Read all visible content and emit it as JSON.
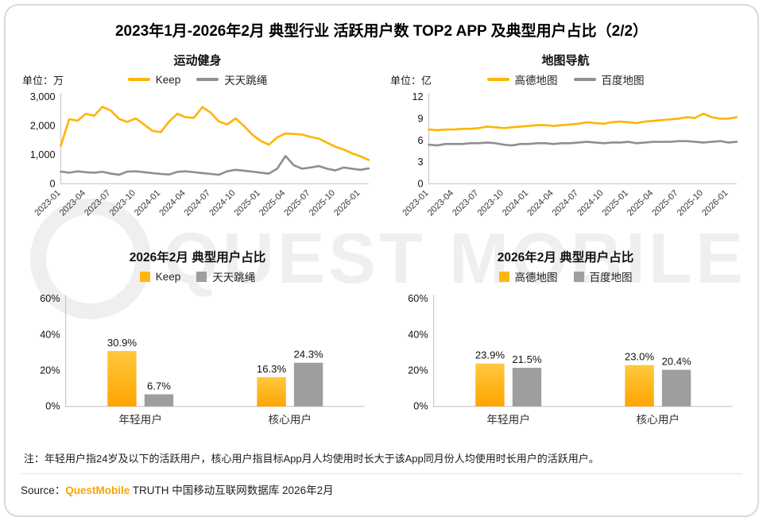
{
  "page": {
    "title": "2023年1月-2026年2月 典型行业 活跃用户数 TOP2 APP 及典型用户占比（2/2）",
    "note": "注：年轻用户指24岁及以下的活跃用户，核心用户指目标App月人均使用时长大于该App同月份人均使用时长用户的活跃用户。",
    "source_prefix": "Source：",
    "source_brand": "QuestMobile",
    "source_suffix": " TRUTH 中国移动互联网数据库 2026年2月",
    "watermark": "QUEST MOBILE"
  },
  "colors": {
    "accent_yellow": "#FFB400",
    "gray": "#8F8F8F",
    "brand_orange": "#F7A600"
  },
  "chart_data": [
    {
      "type": "line",
      "title": "运动健身",
      "unit_label": "单位：万",
      "x": [
        "2023-01",
        "2023-02",
        "2023-03",
        "2023-04",
        "2023-05",
        "2023-06",
        "2023-07",
        "2023-08",
        "2023-09",
        "2023-10",
        "2023-11",
        "2023-12",
        "2024-01",
        "2024-02",
        "2024-03",
        "2024-04",
        "2024-05",
        "2024-06",
        "2024-07",
        "2024-08",
        "2024-09",
        "2024-10",
        "2024-11",
        "2024-12",
        "2025-01",
        "2025-02",
        "2025-03",
        "2025-04",
        "2025-05",
        "2025-06",
        "2025-07",
        "2025-08",
        "2025-09",
        "2025-10",
        "2025-11",
        "2025-12",
        "2026-01",
        "2026-02"
      ],
      "tick_labels": [
        "2023-01",
        "2023-04",
        "2023-07",
        "2023-10",
        "2024-01",
        "2024-04",
        "2024-07",
        "2024-10",
        "2025-01",
        "2025-04",
        "2025-07",
        "2025-10",
        "2026-01"
      ],
      "tick_step": 3,
      "ylim": [
        0,
        3000
      ],
      "yticks": [
        0,
        1000,
        2000,
        3000
      ],
      "series": [
        {
          "name": "Keep",
          "color": "#FFB400",
          "values": [
            1320,
            2230,
            2180,
            2420,
            2350,
            2660,
            2530,
            2240,
            2140,
            2260,
            2050,
            1830,
            1780,
            2150,
            2420,
            2300,
            2280,
            2650,
            2460,
            2150,
            2050,
            2260,
            2000,
            1700,
            1480,
            1350,
            1600,
            1740,
            1720,
            1700,
            1620,
            1560,
            1420,
            1280,
            1180,
            1050,
            950,
            820
          ]
        },
        {
          "name": "天天跳绳",
          "color": "#8F8F8F",
          "values": [
            420,
            380,
            430,
            400,
            380,
            410,
            350,
            310,
            420,
            430,
            400,
            370,
            340,
            320,
            410,
            430,
            400,
            370,
            340,
            310,
            430,
            480,
            450,
            420,
            380,
            350,
            520,
            960,
            640,
            520,
            560,
            610,
            520,
            460,
            560,
            520,
            480,
            530
          ]
        }
      ]
    },
    {
      "type": "line",
      "title": "地图导航",
      "unit_label": "单位：亿",
      "x": [
        "2023-01",
        "2023-02",
        "2023-03",
        "2023-04",
        "2023-05",
        "2023-06",
        "2023-07",
        "2023-08",
        "2023-09",
        "2023-10",
        "2023-11",
        "2023-12",
        "2024-01",
        "2024-02",
        "2024-03",
        "2024-04",
        "2024-05",
        "2024-06",
        "2024-07",
        "2024-08",
        "2024-09",
        "2024-10",
        "2024-11",
        "2024-12",
        "2025-01",
        "2025-02",
        "2025-03",
        "2025-04",
        "2025-05",
        "2025-06",
        "2025-07",
        "2025-08",
        "2025-09",
        "2025-10",
        "2025-11",
        "2025-12",
        "2026-01",
        "2026-02"
      ],
      "tick_labels": [
        "2023-01",
        "2023-04",
        "2023-07",
        "2023-10",
        "2024-01",
        "2024-04",
        "2024-07",
        "2024-10",
        "2025-01",
        "2025-04",
        "2025-07",
        "2025-10",
        "2026-01"
      ],
      "tick_step": 3,
      "ylim": [
        0,
        12
      ],
      "yticks": [
        0,
        3,
        6,
        9,
        12
      ],
      "series": [
        {
          "name": "高德地图",
          "color": "#FFB400",
          "values": [
            7.5,
            7.4,
            7.5,
            7.5,
            7.6,
            7.6,
            7.7,
            7.9,
            7.8,
            7.7,
            7.8,
            7.9,
            8.0,
            8.1,
            8.1,
            8.0,
            8.1,
            8.2,
            8.3,
            8.5,
            8.4,
            8.3,
            8.5,
            8.6,
            8.5,
            8.4,
            8.6,
            8.7,
            8.8,
            8.9,
            9.0,
            9.2,
            9.1,
            9.7,
            9.2,
            9.0,
            9.0,
            9.2
          ]
        },
        {
          "name": "百度地图",
          "color": "#8F8F8F",
          "values": [
            5.4,
            5.3,
            5.5,
            5.5,
            5.5,
            5.6,
            5.6,
            5.7,
            5.6,
            5.4,
            5.3,
            5.5,
            5.5,
            5.6,
            5.6,
            5.5,
            5.6,
            5.6,
            5.7,
            5.8,
            5.7,
            5.6,
            5.7,
            5.7,
            5.8,
            5.6,
            5.7,
            5.8,
            5.8,
            5.8,
            5.9,
            5.9,
            5.8,
            5.7,
            5.8,
            5.9,
            5.7,
            5.8
          ]
        }
      ]
    },
    {
      "type": "bar",
      "title": "2026年2月 典型用户占比",
      "categories": [
        "年轻用户",
        "核心用户"
      ],
      "ylim": [
        0,
        60
      ],
      "yticks": [
        0,
        20,
        40,
        60
      ],
      "value_suffix": "%",
      "series": [
        {
          "name": "Keep",
          "color": "#FFB612",
          "values": [
            30.9,
            16.3
          ]
        },
        {
          "name": "天天跳绳",
          "color": "#9E9E9E",
          "values": [
            6.7,
            24.3
          ]
        }
      ]
    },
    {
      "type": "bar",
      "title": "2026年2月 典型用户占比",
      "categories": [
        "年轻用户",
        "核心用户"
      ],
      "ylim": [
        0,
        60
      ],
      "yticks": [
        0,
        20,
        40,
        60
      ],
      "value_suffix": "%",
      "series": [
        {
          "name": "高德地图",
          "color": "#FFB612",
          "values": [
            23.9,
            23.0
          ]
        },
        {
          "name": "百度地图",
          "color": "#9E9E9E",
          "values": [
            21.5,
            20.4
          ]
        }
      ]
    }
  ]
}
